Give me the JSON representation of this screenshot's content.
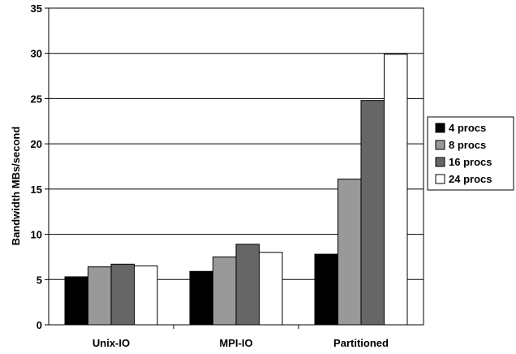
{
  "chart_data": {
    "type": "bar",
    "title": "",
    "xlabel": "",
    "ylabel": "Bandwidth MBs/second",
    "ylim": [
      0,
      35
    ],
    "yticks": [
      0,
      5,
      10,
      15,
      20,
      25,
      30,
      35
    ],
    "grid": true,
    "legend_position": "right",
    "categories": [
      "Unix-IO",
      "MPI-IO",
      "Partitioned"
    ],
    "series": [
      {
        "name": "4 procs",
        "color": "#000000",
        "values": [
          5.3,
          5.9,
          7.8
        ]
      },
      {
        "name": "8 procs",
        "color": "#999999",
        "values": [
          6.4,
          7.5,
          16.1
        ]
      },
      {
        "name": "16 procs",
        "color": "#666666",
        "values": [
          6.7,
          8.9,
          24.8
        ]
      },
      {
        "name": "24 procs",
        "color": "#ffffff",
        "values": [
          6.5,
          8.0,
          29.9
        ]
      }
    ]
  }
}
